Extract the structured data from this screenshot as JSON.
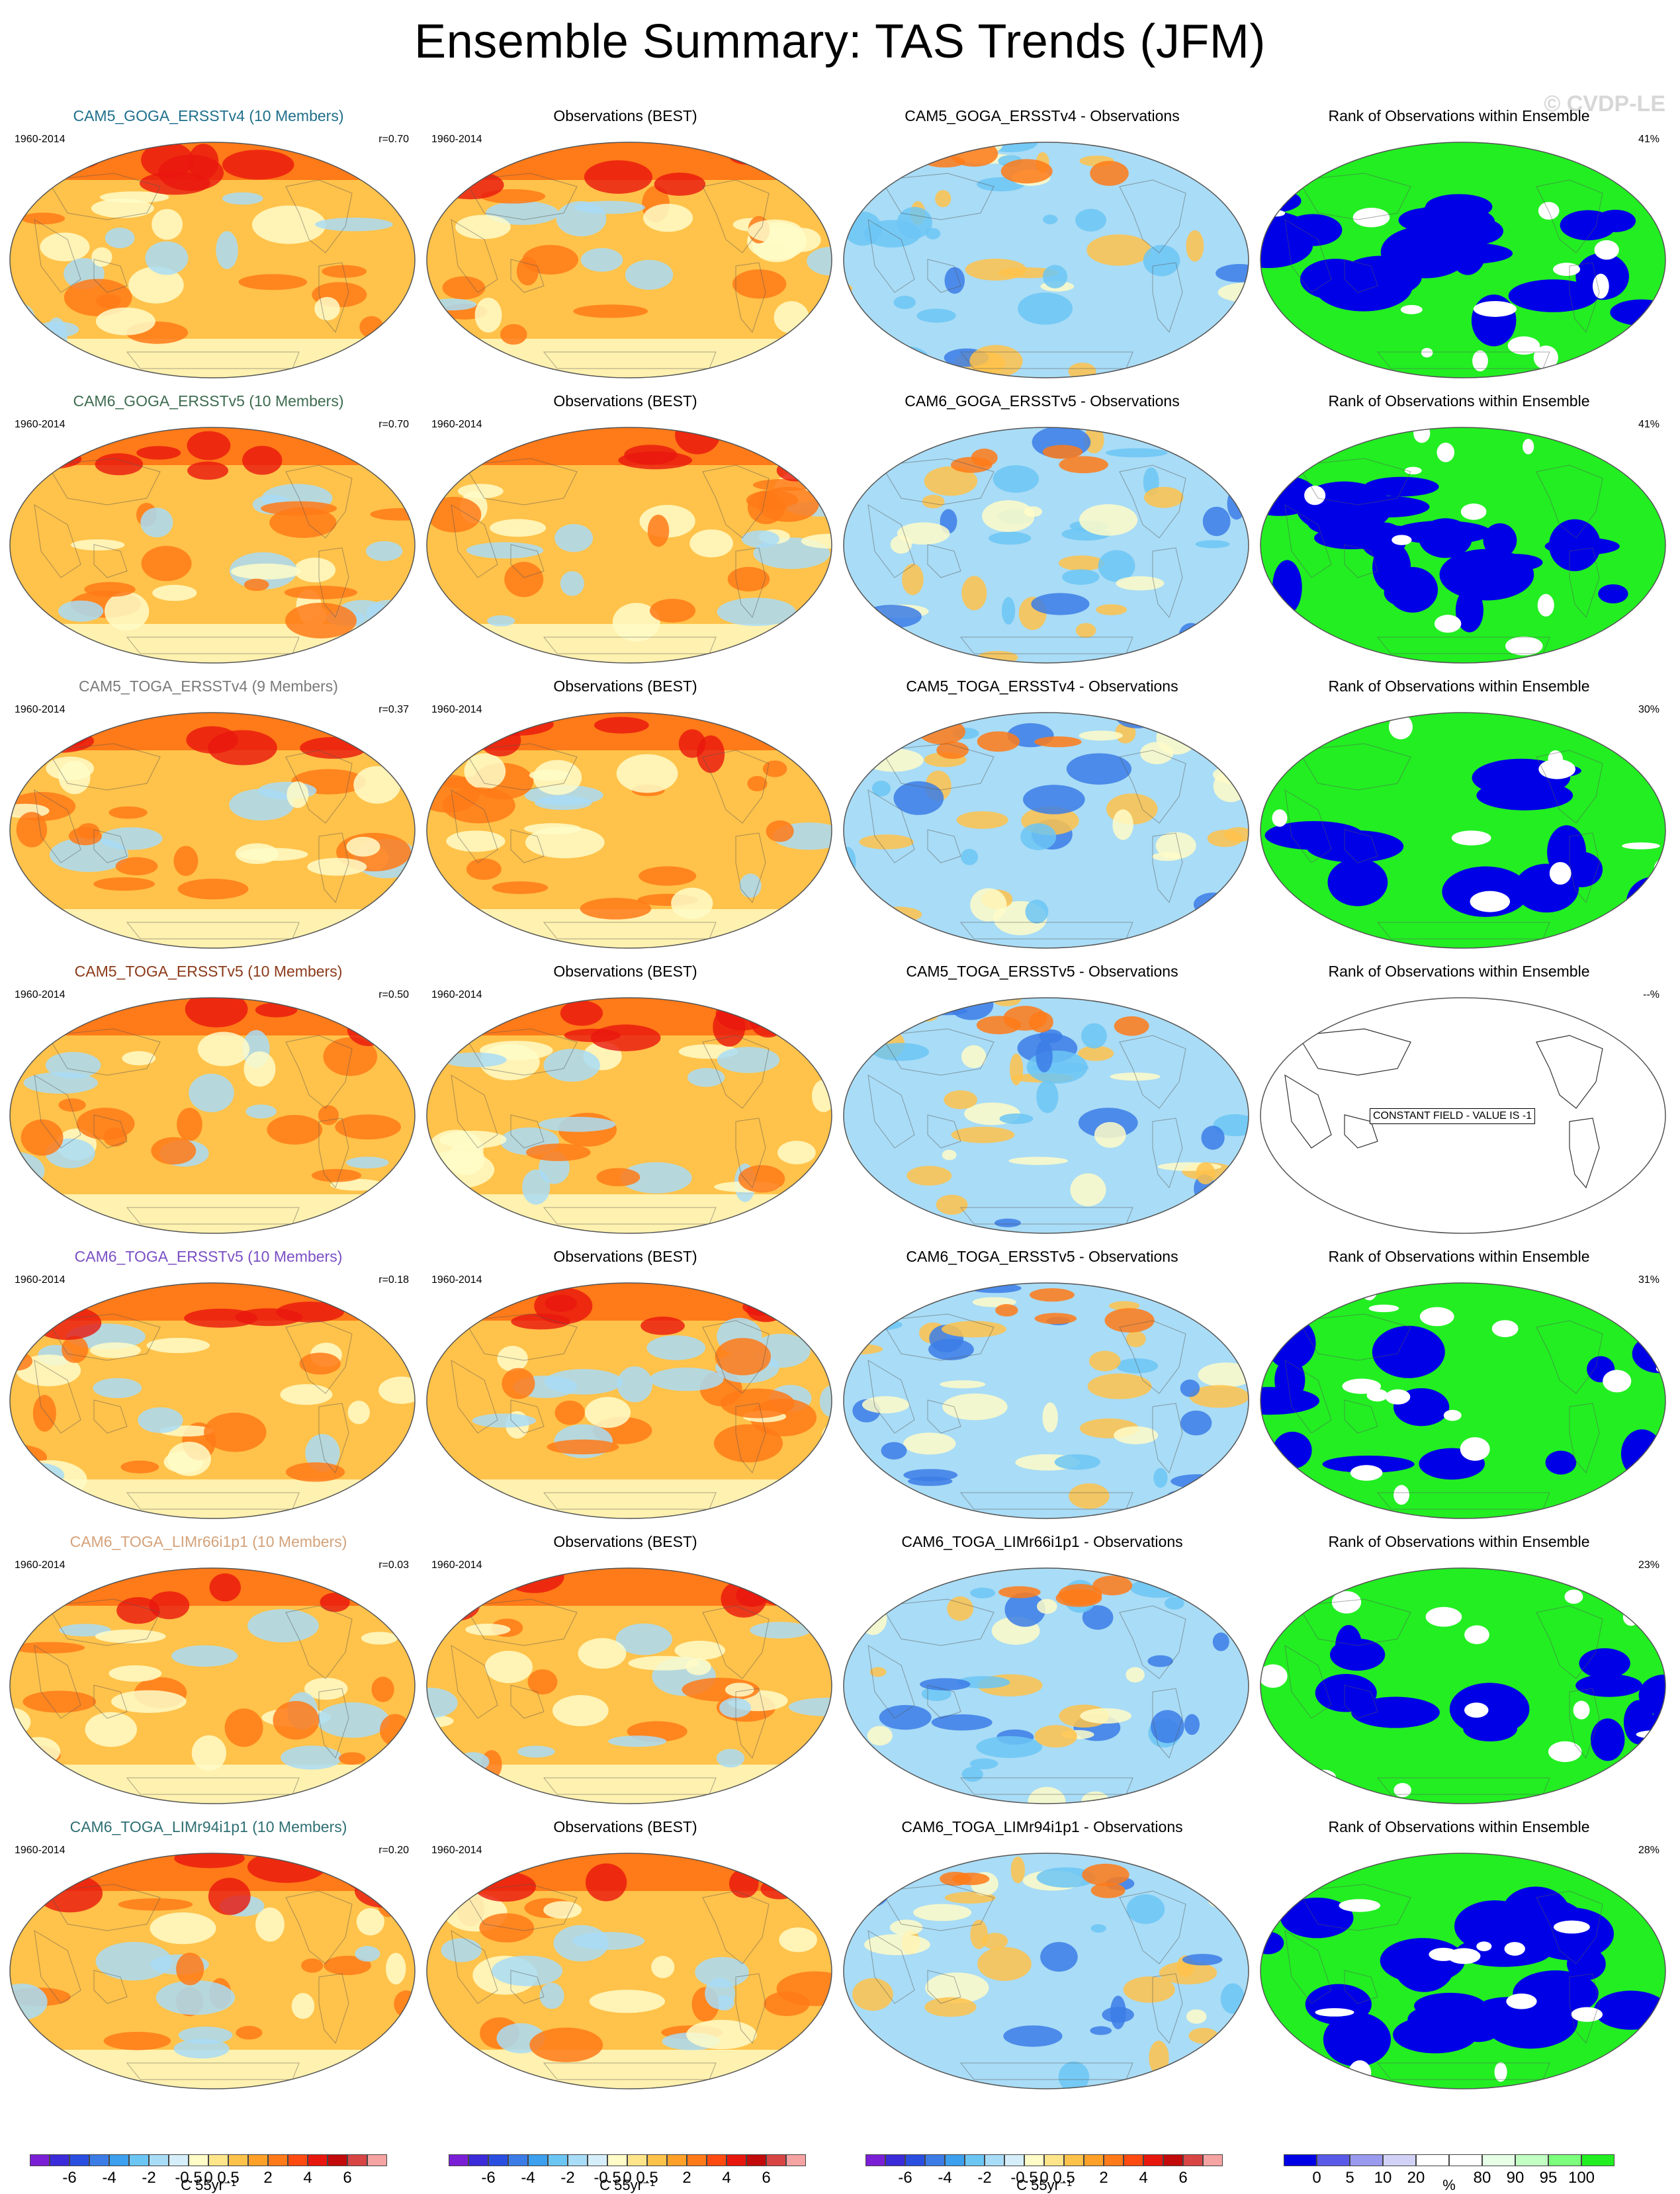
{
  "title": "Ensemble Summary: TAS Trends (JFM)",
  "watermark": "© CVDP-LE",
  "years": "1960-2014",
  "obs_title": "Observations (BEST)",
  "rank_title": "Rank of Observations within Ensemble",
  "constant_field_label": "CONSTANT FIELD - VALUE IS -1",
  "rows": [
    {
      "model": "CAM5_GOGA_ERSSTv4 (10 Members)",
      "model_color": "#1f6f8b",
      "corr": "r=0.70",
      "diff": "CAM5_GOGA_ERSSTv4 - Observations",
      "rank_pct": "41%",
      "rank_style": "mixed"
    },
    {
      "model": "CAM6_GOGA_ERSSTv5 (10 Members)",
      "model_color": "#3d6b4f",
      "corr": "r=0.70",
      "diff": "CAM6_GOGA_ERSSTv5 - Observations",
      "rank_pct": "41%",
      "rank_style": "mixed"
    },
    {
      "model": "CAM5_TOGA_ERSSTv4 (9 Members)",
      "model_color": "#7a7a7a",
      "corr": "r=0.37",
      "diff": "CAM5_TOGA_ERSSTv4 - Observations",
      "rank_pct": "30%",
      "rank_style": "green"
    },
    {
      "model": "CAM5_TOGA_ERSSTv5 (10 Members)",
      "model_color": "#8b3a1a",
      "corr": "r=0.50",
      "diff": "CAM5_TOGA_ERSSTv5 - Observations",
      "rank_pct": "--%",
      "rank_style": "constant"
    },
    {
      "model": "CAM6_TOGA_ERSSTv5 (10 Members)",
      "model_color": "#7b4fc4",
      "corr": "r=0.18",
      "diff": "CAM6_TOGA_ERSSTv5 - Observations",
      "rank_pct": "31%",
      "rank_style": "green"
    },
    {
      "model": "CAM6_TOGA_LIMr66i1p1 (10 Members)",
      "model_color": "#d4a27a",
      "corr": "r=0.03",
      "diff": "CAM6_TOGA_LIMr66i1p1 - Observations",
      "rank_pct": "23%",
      "rank_style": "green"
    },
    {
      "model": "CAM6_TOGA_LIMr94i1p1 (10 Members)",
      "model_color": "#2f6f73",
      "corr": "r=0.20",
      "diff": "CAM6_TOGA_LIMr94i1p1 - Observations",
      "rank_pct": "28%",
      "rank_style": "mixed"
    }
  ],
  "trend_colorbar": {
    "colors": [
      "#7a1fd6",
      "#3b2bd8",
      "#2a4fe0",
      "#3c7ce6",
      "#3ca0ee",
      "#6cc6f4",
      "#a9dcf6",
      "#d5eef9",
      "#fffcc8",
      "#ffe58a",
      "#ffc24a",
      "#ffa128",
      "#ff7a18",
      "#ff4a10",
      "#e8170e",
      "#c20a0a",
      "#d84545",
      "#f5a3a3"
    ],
    "labels": [
      "-6",
      "-4",
      "-2",
      "-0.5",
      "0",
      "0.5",
      "2",
      "4",
      "6"
    ],
    "unit": "C 55yr⁻¹"
  },
  "rank_colorbar": {
    "colors": [
      "#0000e6",
      "#5a5ae8",
      "#9a9aef",
      "#d2d2f7",
      "#ffffff",
      "#ffffff",
      "#e6ffe6",
      "#c2ffc2",
      "#7cff7c",
      "#22ee22"
    ],
    "labels": [
      "0",
      "5",
      "10",
      "20",
      "80",
      "90",
      "95",
      "100"
    ],
    "unit": "%"
  },
  "palette": {
    "trend_warm": "#ffc24a",
    "trend_hot": "#ff7a18",
    "trend_veryhot": "#e8170e",
    "trend_cool": "#a9dcf6",
    "trend_neutral": "#fffcc8",
    "rank_blue": "#0000e6",
    "rank_green": "#22ee22"
  }
}
